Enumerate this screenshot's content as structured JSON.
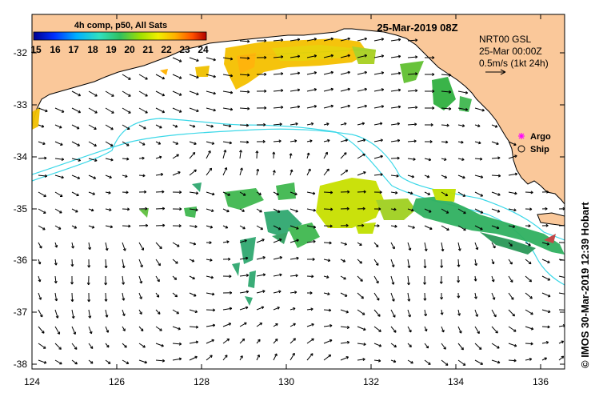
{
  "title": "25-Mar-2019 08Z",
  "colorbar": {
    "label": "4h comp, p50, All Sats",
    "ticks": [
      "15",
      "16",
      "17",
      "18",
      "19",
      "20",
      "21",
      "22",
      "23",
      "24"
    ],
    "colors": [
      "#00008f",
      "#0040ff",
      "#00bfff",
      "#40ffbf",
      "#00c080",
      "#40b000",
      "#bfff00",
      "#ffbf00",
      "#ff6000",
      "#c00000"
    ]
  },
  "currents": {
    "product": "NRT00 GSL",
    "time": "25-Mar 00:00Z",
    "scale_label": "0.5m/s (1kt 24h)"
  },
  "legend": {
    "argo": "Argo",
    "ship": "Ship",
    "argo_color": "#ff00ff"
  },
  "axes": {
    "x_ticks": [
      "124",
      "126",
      "128",
      "130",
      "132",
      "134",
      "136"
    ],
    "y_ticks": [
      "-32",
      "-33",
      "-34",
      "-35",
      "-36",
      "-37",
      "-38"
    ],
    "lon_range": [
      124,
      136.6
    ],
    "lat_range": [
      -38.1,
      -31.4
    ]
  },
  "credit": "© IMOS 30-Mar-2019 12:39 Hobart",
  "colors": {
    "land": "#fac89a",
    "contour": "#3cd8e8",
    "ocean": "#ffffff"
  }
}
